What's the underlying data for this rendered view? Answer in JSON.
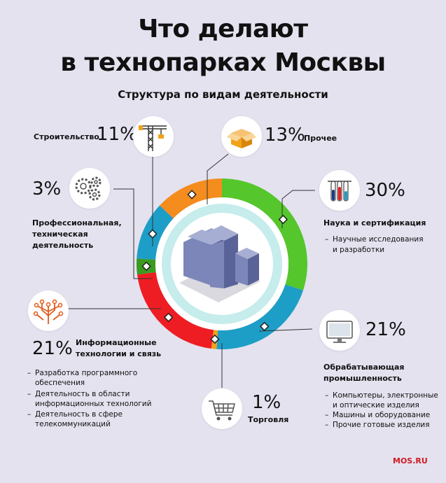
{
  "header": {
    "title_line1": "Что делают",
    "title_line2": "в технопарках Москвы",
    "subtitle": "Структура по видам деятельности"
  },
  "chart_data": {
    "type": "pie",
    "donut": true,
    "categories": [
      "Наука и сертификация",
      "Обрабатывающая промышленность",
      "Торговля",
      "Информационные технологии и связь",
      "Профессиональная, техническая деятельность",
      "Строительство",
      "Прочее"
    ],
    "values": [
      30,
      21,
      1,
      21,
      3,
      11,
      13
    ],
    "unit": "%",
    "colors": [
      "#55c62b",
      "#1d9ec7",
      "#f0a21a",
      "#ee1d23",
      "#3a9b1f",
      "#1d9ec7",
      "#f58c1e"
    ],
    "legend": "around"
  },
  "segments": {
    "science": {
      "value": "30%",
      "label": "Наука и сертификация",
      "items": [
        "Научные исследования",
        "и разработки"
      ],
      "icon": "test-tubes-icon"
    },
    "manufacturing": {
      "value": "21%",
      "label_line1": "Обрабатывающая",
      "label_line2": "промышленность",
      "items": [
        "Компьютеры, электронные",
        "и оптические изделия",
        "Машины и оборудование",
        "Прочие готовые изделия"
      ],
      "icon": "monitor-icon"
    },
    "trade": {
      "value": "1%",
      "label": "Торговля",
      "icon": "shopping-cart-icon"
    },
    "it": {
      "value": "21%",
      "label_line1": "Информационные",
      "label_line2": "технологии и связь",
      "items": [
        "Разработка программного",
        "обеспечения",
        "Деятельность в области",
        "информационных технологий",
        "Деятельность в сфере",
        "телекоммуникаций"
      ],
      "icon": "circuit-tree-icon"
    },
    "professional": {
      "value": "3%",
      "label_line1": "Профессиональная,",
      "label_line2": "техническая",
      "label_line3": "деятельность",
      "icon": "gears-icon"
    },
    "construction": {
      "value": "11%",
      "label": "Строительство",
      "icon": "crane-icon"
    },
    "other": {
      "value": "13%",
      "label": "Прочее",
      "icon": "box-icon"
    }
  },
  "footer": {
    "brand": "MOS.RU"
  }
}
